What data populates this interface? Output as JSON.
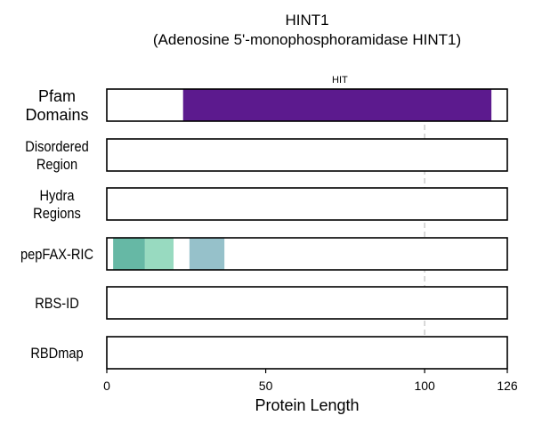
{
  "chart_data": {
    "type": "bar",
    "title": "HINT1",
    "subtitle": "(Adenosine 5'-monophosphoramidase HINT1)",
    "xlabel": "Protein Length",
    "ylabel": "",
    "xlim": [
      0,
      126
    ],
    "xticks": [
      0,
      50,
      100,
      126
    ],
    "xtick_labels": [
      "0",
      "50",
      "100",
      "126"
    ],
    "reference_line_x": 100,
    "grid": false,
    "legend": "none",
    "tracks": [
      {
        "label": "Pfam\nDomains",
        "segments": [
          {
            "start": 24,
            "end": 121,
            "label": "HIT",
            "color": "#5c1a8e"
          }
        ]
      },
      {
        "label": "Disordered\nRegion",
        "segments": []
      },
      {
        "label": "Hydra\nRegions",
        "segments": []
      },
      {
        "label": "pepFAX-RIC",
        "segments": [
          {
            "start": 2,
            "end": 12,
            "label": "",
            "color": "#66b8a5"
          },
          {
            "start": 12,
            "end": 21,
            "label": "",
            "color": "#98dac0"
          },
          {
            "start": 26,
            "end": 37,
            "label": "",
            "color": "#96c1ca"
          }
        ]
      },
      {
        "label": "RBS-ID",
        "segments": []
      },
      {
        "label": "RBDmap",
        "segments": []
      }
    ]
  }
}
